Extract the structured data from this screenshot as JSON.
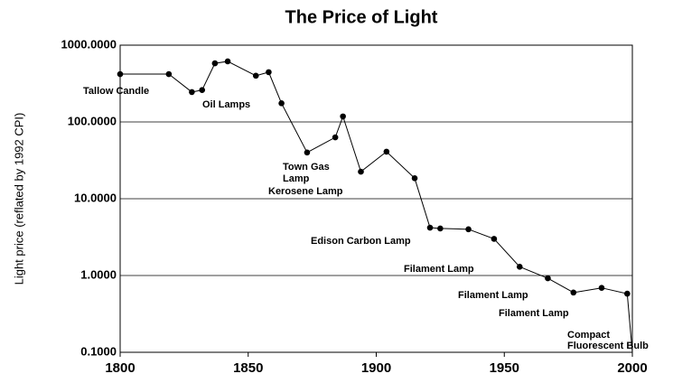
{
  "chart_data": {
    "type": "line",
    "title": "The  Price of Light",
    "y_label": "Light price (reflated by 1992 CPI)",
    "log_scale_y": true,
    "grid": true,
    "color": "#000000",
    "x": [
      1800,
      1819,
      1828,
      1832,
      1837,
      1842,
      1853,
      1858,
      1863,
      1873,
      1884,
      1887,
      1894,
      1904,
      1915,
      1921,
      1925,
      1936,
      1946,
      1956,
      1967,
      1977,
      1988,
      1998,
      2000
    ],
    "values": [
      420,
      420,
      245,
      260,
      580,
      615,
      400,
      445,
      175,
      40,
      63,
      118,
      22.5,
      41,
      18.5,
      4.2,
      4.1,
      4.0,
      3.0,
      1.3,
      0.92,
      0.6,
      0.69,
      0.58,
      0.1
    ],
    "xlim": [
      1800,
      2000
    ],
    "xticks": [
      1800,
      1850,
      1900,
      1950,
      2000
    ],
    "ylim": [
      0.1,
      1000
    ],
    "yticks": [
      {
        "value": 0.1,
        "label": "0.1000"
      },
      {
        "value": 1,
        "label": "1.0000"
      },
      {
        "value": 10,
        "label": "10.0000"
      },
      {
        "value": 100,
        "label": "100.0000"
      },
      {
        "value": 1000,
        "label": "1000.0000"
      }
    ],
    "annotations": [
      "Tallow Candle",
      "Oil Lamps",
      "Town Gas",
      "Lamp",
      "Kerosene Lamp",
      "Edison Carbon Lamp",
      "Filament Lamp",
      "Filament Lamp",
      "Filament Lamp",
      "Compact",
      "Fluorescent Bulb"
    ]
  }
}
